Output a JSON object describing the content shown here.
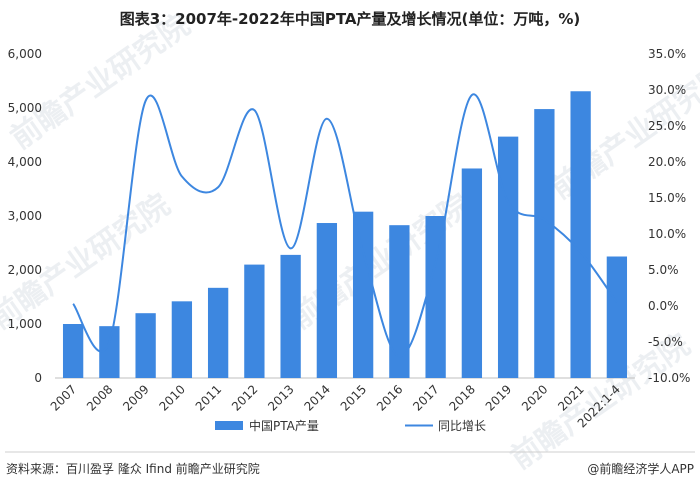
{
  "chart_data": {
    "type": "bar",
    "title": "图表3：2007年-2022年中国PTA产量及增长情况(单位：万吨，%)",
    "categories": [
      "2007",
      "2008",
      "2009",
      "2010",
      "2011",
      "2012",
      "2013",
      "2014",
      "2015",
      "2016",
      "2017",
      "2018",
      "2019",
      "2020",
      "2021",
      "2022:1-4"
    ],
    "series": [
      {
        "name": "中国PTA产量",
        "type": "bar",
        "axis": "left",
        "color": "#3d87e0",
        "values": [
          1000,
          960,
          1200,
          1420,
          1670,
          2100,
          2280,
          2870,
          3080,
          2830,
          3000,
          3880,
          4470,
          4980,
          5310,
          2250
        ]
      },
      {
        "name": "同比增长",
        "type": "line",
        "axis": "right",
        "color": "#3d87e0",
        "values": [
          0.3,
          -5.0,
          28.5,
          18.0,
          16.5,
          27.2,
          8.0,
          26.0,
          7.5,
          -7.0,
          6.0,
          29.3,
          14.5,
          12.0,
          7.5,
          0.5
        ]
      }
    ],
    "y_left": {
      "ylim": [
        0,
        6000
      ],
      "ticks": [
        "0",
        "1,000",
        "2,000",
        "3,000",
        "4,000",
        "5,000",
        "6,000"
      ]
    },
    "y_right": {
      "ylim": [
        -10,
        35
      ],
      "ticks": [
        "-10.0%",
        "-5.0%",
        "0.0%",
        "5.0%",
        "10.0%",
        "15.0%",
        "20.0%",
        "25.0%",
        "30.0%",
        "35.0%"
      ]
    },
    "grid": false,
    "legend": "bottom"
  },
  "footer": {
    "source": "资料来源：百川盈孚 隆众 Ifind 前瞻产业研究院",
    "brand": "@前瞻经济学人APP"
  },
  "watermark": "前瞻产业研究院"
}
